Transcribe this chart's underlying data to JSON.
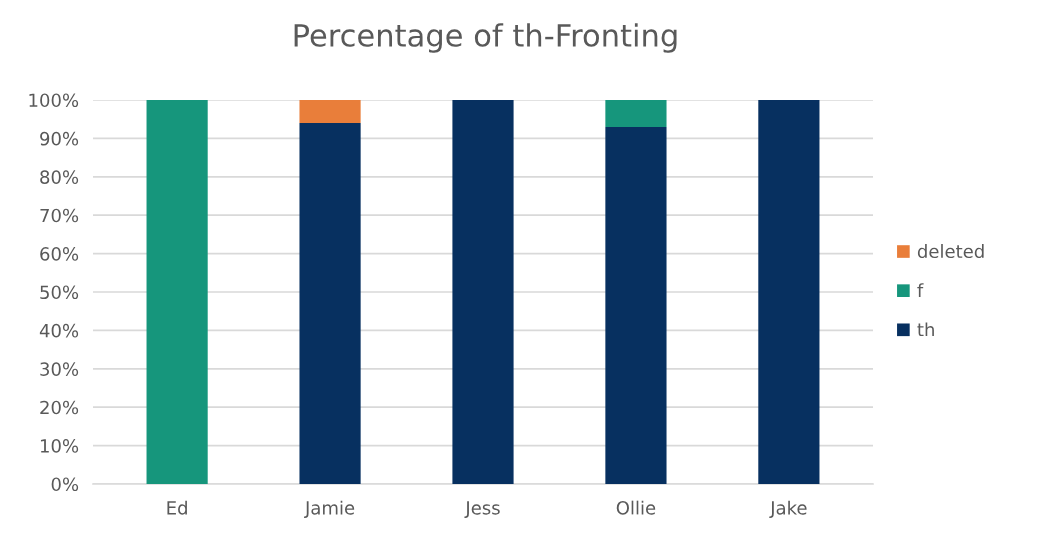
{
  "chart_data": {
    "type": "bar",
    "title": "Percentage of th-Fronting",
    "stacked": true,
    "categories": [
      "Ed",
      "Jamie",
      "Jess",
      "Ollie",
      "Jake"
    ],
    "series": [
      {
        "name": "th",
        "color": "#073060",
        "values": [
          0,
          94,
          100,
          93,
          100
        ]
      },
      {
        "name": "f",
        "color": "#16967c",
        "values": [
          100,
          0,
          0,
          7,
          0
        ]
      },
      {
        "name": "deleted",
        "color": "#e97e3a",
        "values": [
          0,
          6,
          0,
          0,
          0
        ]
      }
    ],
    "ylim": [
      0,
      100
    ],
    "yticks": [
      {
        "value": 0,
        "label": "0%"
      },
      {
        "value": 10,
        "label": "10%"
      },
      {
        "value": 20,
        "label": "20%"
      },
      {
        "value": 30,
        "label": "30%"
      },
      {
        "value": 40,
        "label": "40%"
      },
      {
        "value": 50,
        "label": "50%"
      },
      {
        "value": 60,
        "label": "60%"
      },
      {
        "value": 70,
        "label": "70%"
      },
      {
        "value": 80,
        "label": "80%"
      },
      {
        "value": 90,
        "label": "90%"
      },
      {
        "value": 100,
        "label": "100%"
      }
    ],
    "grid": "y",
    "legend": "right"
  }
}
